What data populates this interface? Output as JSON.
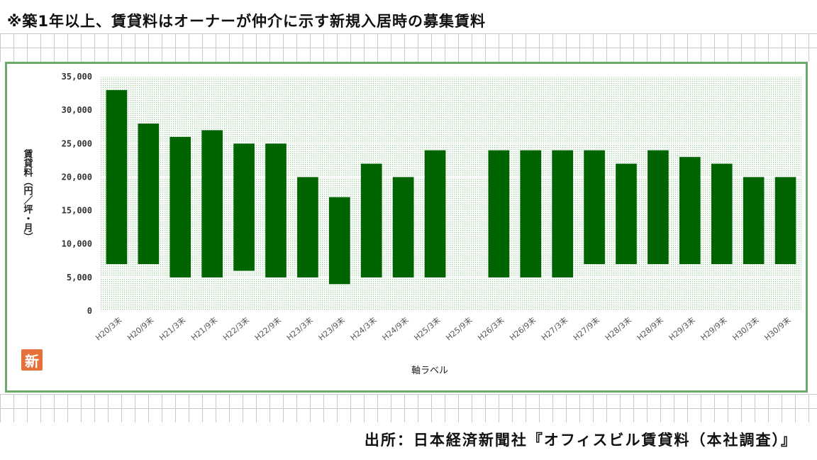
{
  "header_note": "※築1年以上、賃貸料はオーナーが仲介に示す新規入居時の募集賃料",
  "source_note": "出所：日本経済新聞社『オフィスビル賃貸料（本社調査）』",
  "badge": "新",
  "colors": {
    "bar": "#006400",
    "frame": "#6aab6a",
    "plot_dots": "#bfdcbf"
  },
  "chart_data": {
    "type": "bar",
    "subtype": "floating-range",
    "categories": [
      "H20/3末",
      "H20/9末",
      "H21/3末",
      "H21/9末",
      "H22/3末",
      "H22/9末",
      "H23/3末",
      "H23/9末",
      "H24/3末",
      "H24/9末",
      "H25/3末",
      "H25/9末",
      "H26/3末",
      "H26/9末",
      "H27/3末",
      "H27/9末",
      "H28/3末",
      "H28/9末",
      "H29/3末",
      "H29/9末",
      "H30/3末",
      "H30/9末"
    ],
    "low": [
      7000,
      7000,
      5000,
      5000,
      6000,
      5000,
      5000,
      4000,
      5000,
      5000,
      5000,
      null,
      5000,
      5000,
      5000,
      7000,
      7000,
      7000,
      7000,
      7000,
      7000,
      7000
    ],
    "high": [
      33000,
      28000,
      26000,
      27000,
      25000,
      25000,
      20000,
      17000,
      22000,
      20000,
      24000,
      null,
      24000,
      24000,
      24000,
      24000,
      22000,
      24000,
      23000,
      22000,
      20000,
      20000
    ],
    "ylim": [
      0,
      35000
    ],
    "yticks": [
      "35,000",
      "30,000",
      "25,000",
      "20,000",
      "15,000",
      "10,000",
      "5,000",
      "0"
    ],
    "ylabel": "賃貸料（円／坪・月）",
    "xlabel": "軸ラベル",
    "grid": true
  }
}
